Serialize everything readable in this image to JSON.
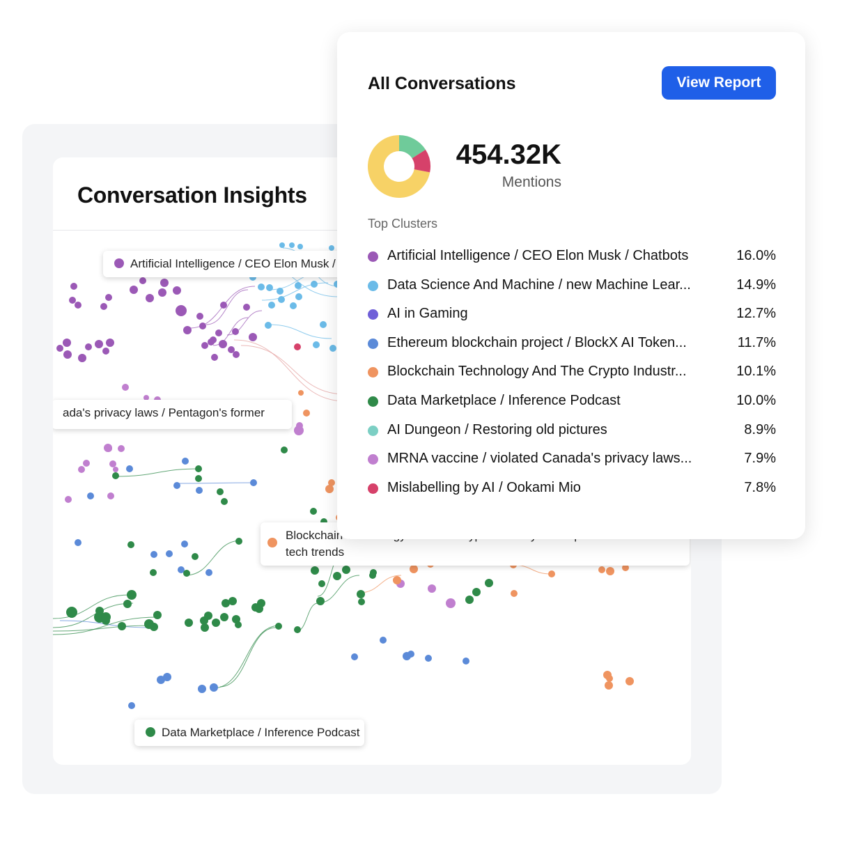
{
  "insights": {
    "title": "Conversation Insights",
    "labels": {
      "ai": "Artificial Intelligence / CEO Elon Musk / Chatbots",
      "privacy": "ada's privacy laws / Pentagon's former",
      "blockchain": "Blockchain Technology And The Crypto Industry / Disruptive business and tech trends",
      "data": "Data Marketplace / Inference Podcast"
    }
  },
  "conversations": {
    "title": "All Conversations",
    "view_report_label": "View Report",
    "mentions_value": "454.32K",
    "mentions_label": "Mentions",
    "top_clusters_label": "Top Clusters",
    "clusters": [
      {
        "name": "Artificial Intelligence / CEO Elon Musk / Chatbots",
        "percent": "16.0%",
        "color": "#9b59b6"
      },
      {
        "name": "Data Science And Machine / new Machine Lear...",
        "percent": "14.9%",
        "color": "#6bbbe8"
      },
      {
        "name": "AI in Gaming",
        "percent": "12.7%",
        "color": "#6f5fd8"
      },
      {
        "name": "Ethereum blockchain project / BlockX AI Token...",
        "percent": "11.7%",
        "color": "#5b8ad8"
      },
      {
        "name": "Blockchain Technology And The Crypto Industr...",
        "percent": "10.1%",
        "color": "#ef9460"
      },
      {
        "name": "Data Marketplace / Inference Podcast",
        "percent": "10.0%",
        "color": "#2f8a49"
      },
      {
        "name": "AI Dungeon / Restoring old pictures",
        "percent": "8.9%",
        "color": "#7ccfc4"
      },
      {
        "name": "MRNA vaccine / violated Canada's privacy laws...",
        "percent": "7.9%",
        "color": "#c07fcf"
      },
      {
        "name": "Mislabelling by AI / Ookami Mio",
        "percent": "7.8%",
        "color": "#d6416a"
      }
    ],
    "donut": [
      {
        "value": 72,
        "color": "#f7d266"
      },
      {
        "value": 16,
        "color": "#6fcb9a"
      },
      {
        "value": 12,
        "color": "#d6416a"
      }
    ]
  },
  "colors": {
    "accent": "#1f5fe8",
    "purple": "#9b59b6",
    "sky": "#6bbbe8",
    "blue": "#5b8ad8",
    "orange": "#ef9460",
    "green": "#2f8a49",
    "lilac": "#c07fcf",
    "crimson": "#d6416a"
  }
}
